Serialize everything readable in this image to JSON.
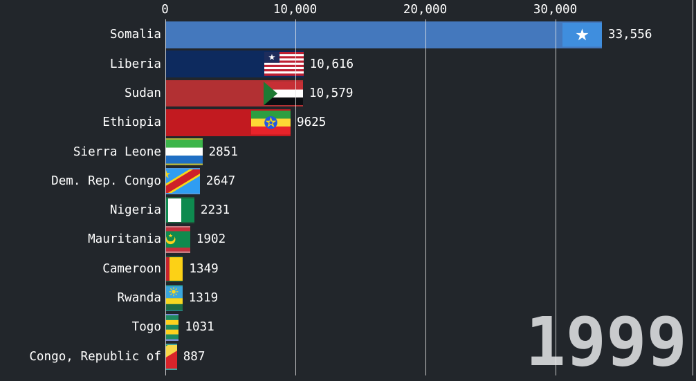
{
  "window": {
    "background": "#22262b"
  },
  "style": {
    "gridline_color": "#e6e6e6",
    "text_color": "#ffffff",
    "year_color": "#c9cbcd"
  },
  "chart_data": {
    "type": "bar",
    "orientation": "horizontal",
    "title": "",
    "year_label": "1999",
    "legend": null,
    "x_axis": {
      "position": "top",
      "ticks": [
        0,
        10000,
        20000,
        30000
      ],
      "tick_labels": [
        "0",
        "10,000",
        "20,000",
        "30,000"
      ],
      "range": [
        0,
        40600
      ],
      "gridlines": true
    },
    "categories": [
      "Somalia",
      "Liberia",
      "Sudan",
      "Ethiopia",
      "Sierra Leone",
      "Dem. Rep. Congo",
      "Nigeria",
      "Mauritania",
      "Cameroon",
      "Rwanda",
      "Togo",
      "Congo, Republic of"
    ],
    "values": [
      33556,
      10616,
      10579,
      9625,
      2851,
      2647,
      2231,
      1902,
      1349,
      1319,
      1031,
      887
    ],
    "bars": [
      {
        "country": "Somalia",
        "value": 33556,
        "value_label": "33,556",
        "bar_color": "#4478bd",
        "flag": "somalia"
      },
      {
        "country": "Liberia",
        "value": 10616,
        "value_label": "10,616",
        "bar_color": "#0d2a5e",
        "flag": "liberia"
      },
      {
        "country": "Sudan",
        "value": 10579,
        "value_label": "10,579",
        "bar_color": "#b23033",
        "flag": "sudan"
      },
      {
        "country": "Ethiopia",
        "value": 9625,
        "value_label": "9625",
        "bar_color": "#c21a20",
        "flag": "ethiopia"
      },
      {
        "country": "Sierra Leone",
        "value": 2851,
        "value_label": "2851",
        "bar_color": "#b2b13c",
        "flag": "sierra-leone"
      },
      {
        "country": "Dem. Rep. Congo",
        "value": 2647,
        "value_label": "2647",
        "bar_color": "#4f9be0",
        "flag": "dr-congo"
      },
      {
        "country": "Nigeria",
        "value": 2231,
        "value_label": "2231",
        "bar_color": "#1d5c3c",
        "flag": "nigeria"
      },
      {
        "country": "Mauritania",
        "value": 1902,
        "value_label": "1902",
        "bar_color": "#c77e83",
        "flag": "mauritania"
      },
      {
        "country": "Cameroon",
        "value": 1349,
        "value_label": "1349",
        "bar_color": "#1e4f39",
        "flag": "cameroon"
      },
      {
        "country": "Rwanda",
        "value": 1319,
        "value_label": "1319",
        "bar_color": "#237f78",
        "flag": "rwanda"
      },
      {
        "country": "Togo",
        "value": 1031,
        "value_label": "1031",
        "bar_color": "#7b8fd4",
        "flag": "togo"
      },
      {
        "country": "Congo, Republic of",
        "value": 887,
        "value_label": "887",
        "bar_color": "#42a49e",
        "flag": "congo-republic"
      }
    ]
  }
}
